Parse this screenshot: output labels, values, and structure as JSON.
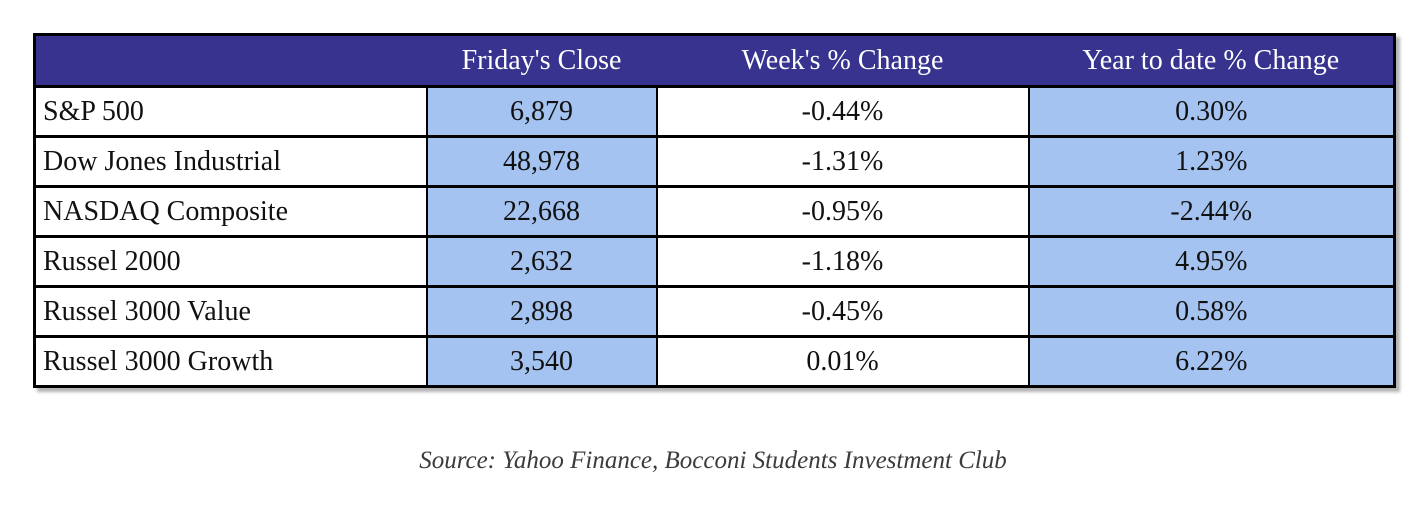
{
  "chart_data": {
    "type": "table",
    "columns": [
      "",
      "Friday's Close",
      "Week's % Change",
      "Year to date % Change"
    ],
    "rows": [
      [
        "S&P 500",
        "6,879",
        "-0.44%",
        "0.30%"
      ],
      [
        "Dow Jones Industrial",
        "48,978",
        "-1.31%",
        "1.23%"
      ],
      [
        "NASDAQ Composite",
        "22,668",
        "-0.95%",
        "-2.44%"
      ],
      [
        "Russel 2000",
        "2,632",
        "-1.18%",
        "4.95%"
      ],
      [
        "Russel 3000 Value",
        "2,898",
        "-0.45%",
        "0.58%"
      ],
      [
        "Russel 3000 Growth",
        "3,540",
        "0.01%",
        "6.22%"
      ]
    ],
    "highlighted_columns": [
      "Friday's Close",
      "Year to date % Change"
    ],
    "layout_hints": {
      "header_position": "top",
      "grid": true
    }
  },
  "source_note": "Source: Yahoo Finance, Bocconi Students Investment Club",
  "colors": {
    "header_bg": "#37338E",
    "highlight_bg": "#A4C3F0",
    "border_color": "#000000",
    "header_text": "#FFFFFF",
    "body_text": "#111111",
    "source_text": "#3B3B3B",
    "page_bg": "#FFFFFF"
  }
}
